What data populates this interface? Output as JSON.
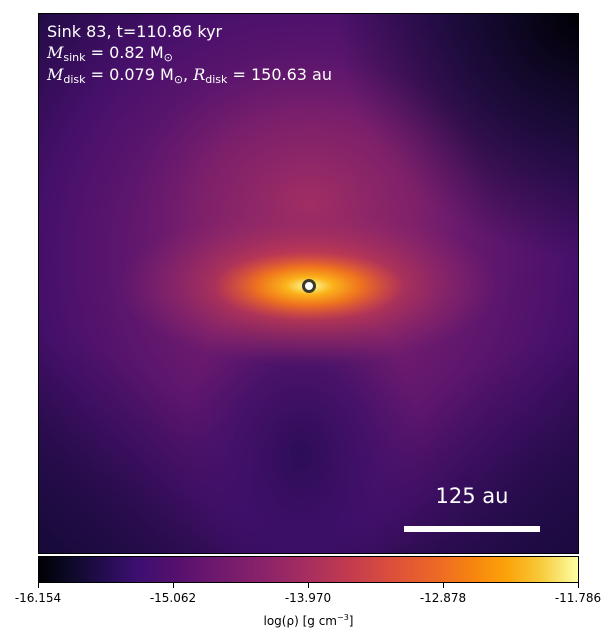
{
  "annotation": {
    "line1": "Sink 83, t=110.86 kyr",
    "msink_symbol": "M",
    "msink_sub": "sink",
    "msink_value": " = 0.82 M",
    "msink_sun": "⊙",
    "mdisk_symbol": "M",
    "mdisk_sub": "disk",
    "mdisk_value": " = 0.079 M",
    "mdisk_sun": "⊙",
    "rdisk_sep": ", ",
    "rdisk_symbol": "R",
    "rdisk_sub": "disk",
    "rdisk_value": " = 150.63 au"
  },
  "scalebar": {
    "label": "125 au"
  },
  "colorbar": {
    "ticks": [
      "-16.154",
      "-15.062",
      "-13.970",
      "-12.878",
      "-11.786"
    ],
    "label_prefix": "log(ρ) [g cm",
    "label_exp": "−3",
    "label_suffix": "]",
    "colormap": "inferno",
    "min": -16.154,
    "max": -11.786
  },
  "colors": {
    "sink_marker_fill": "#ffffff",
    "sink_marker_edge": "#3a3a2a",
    "annotation_text": "#ffffff"
  }
}
